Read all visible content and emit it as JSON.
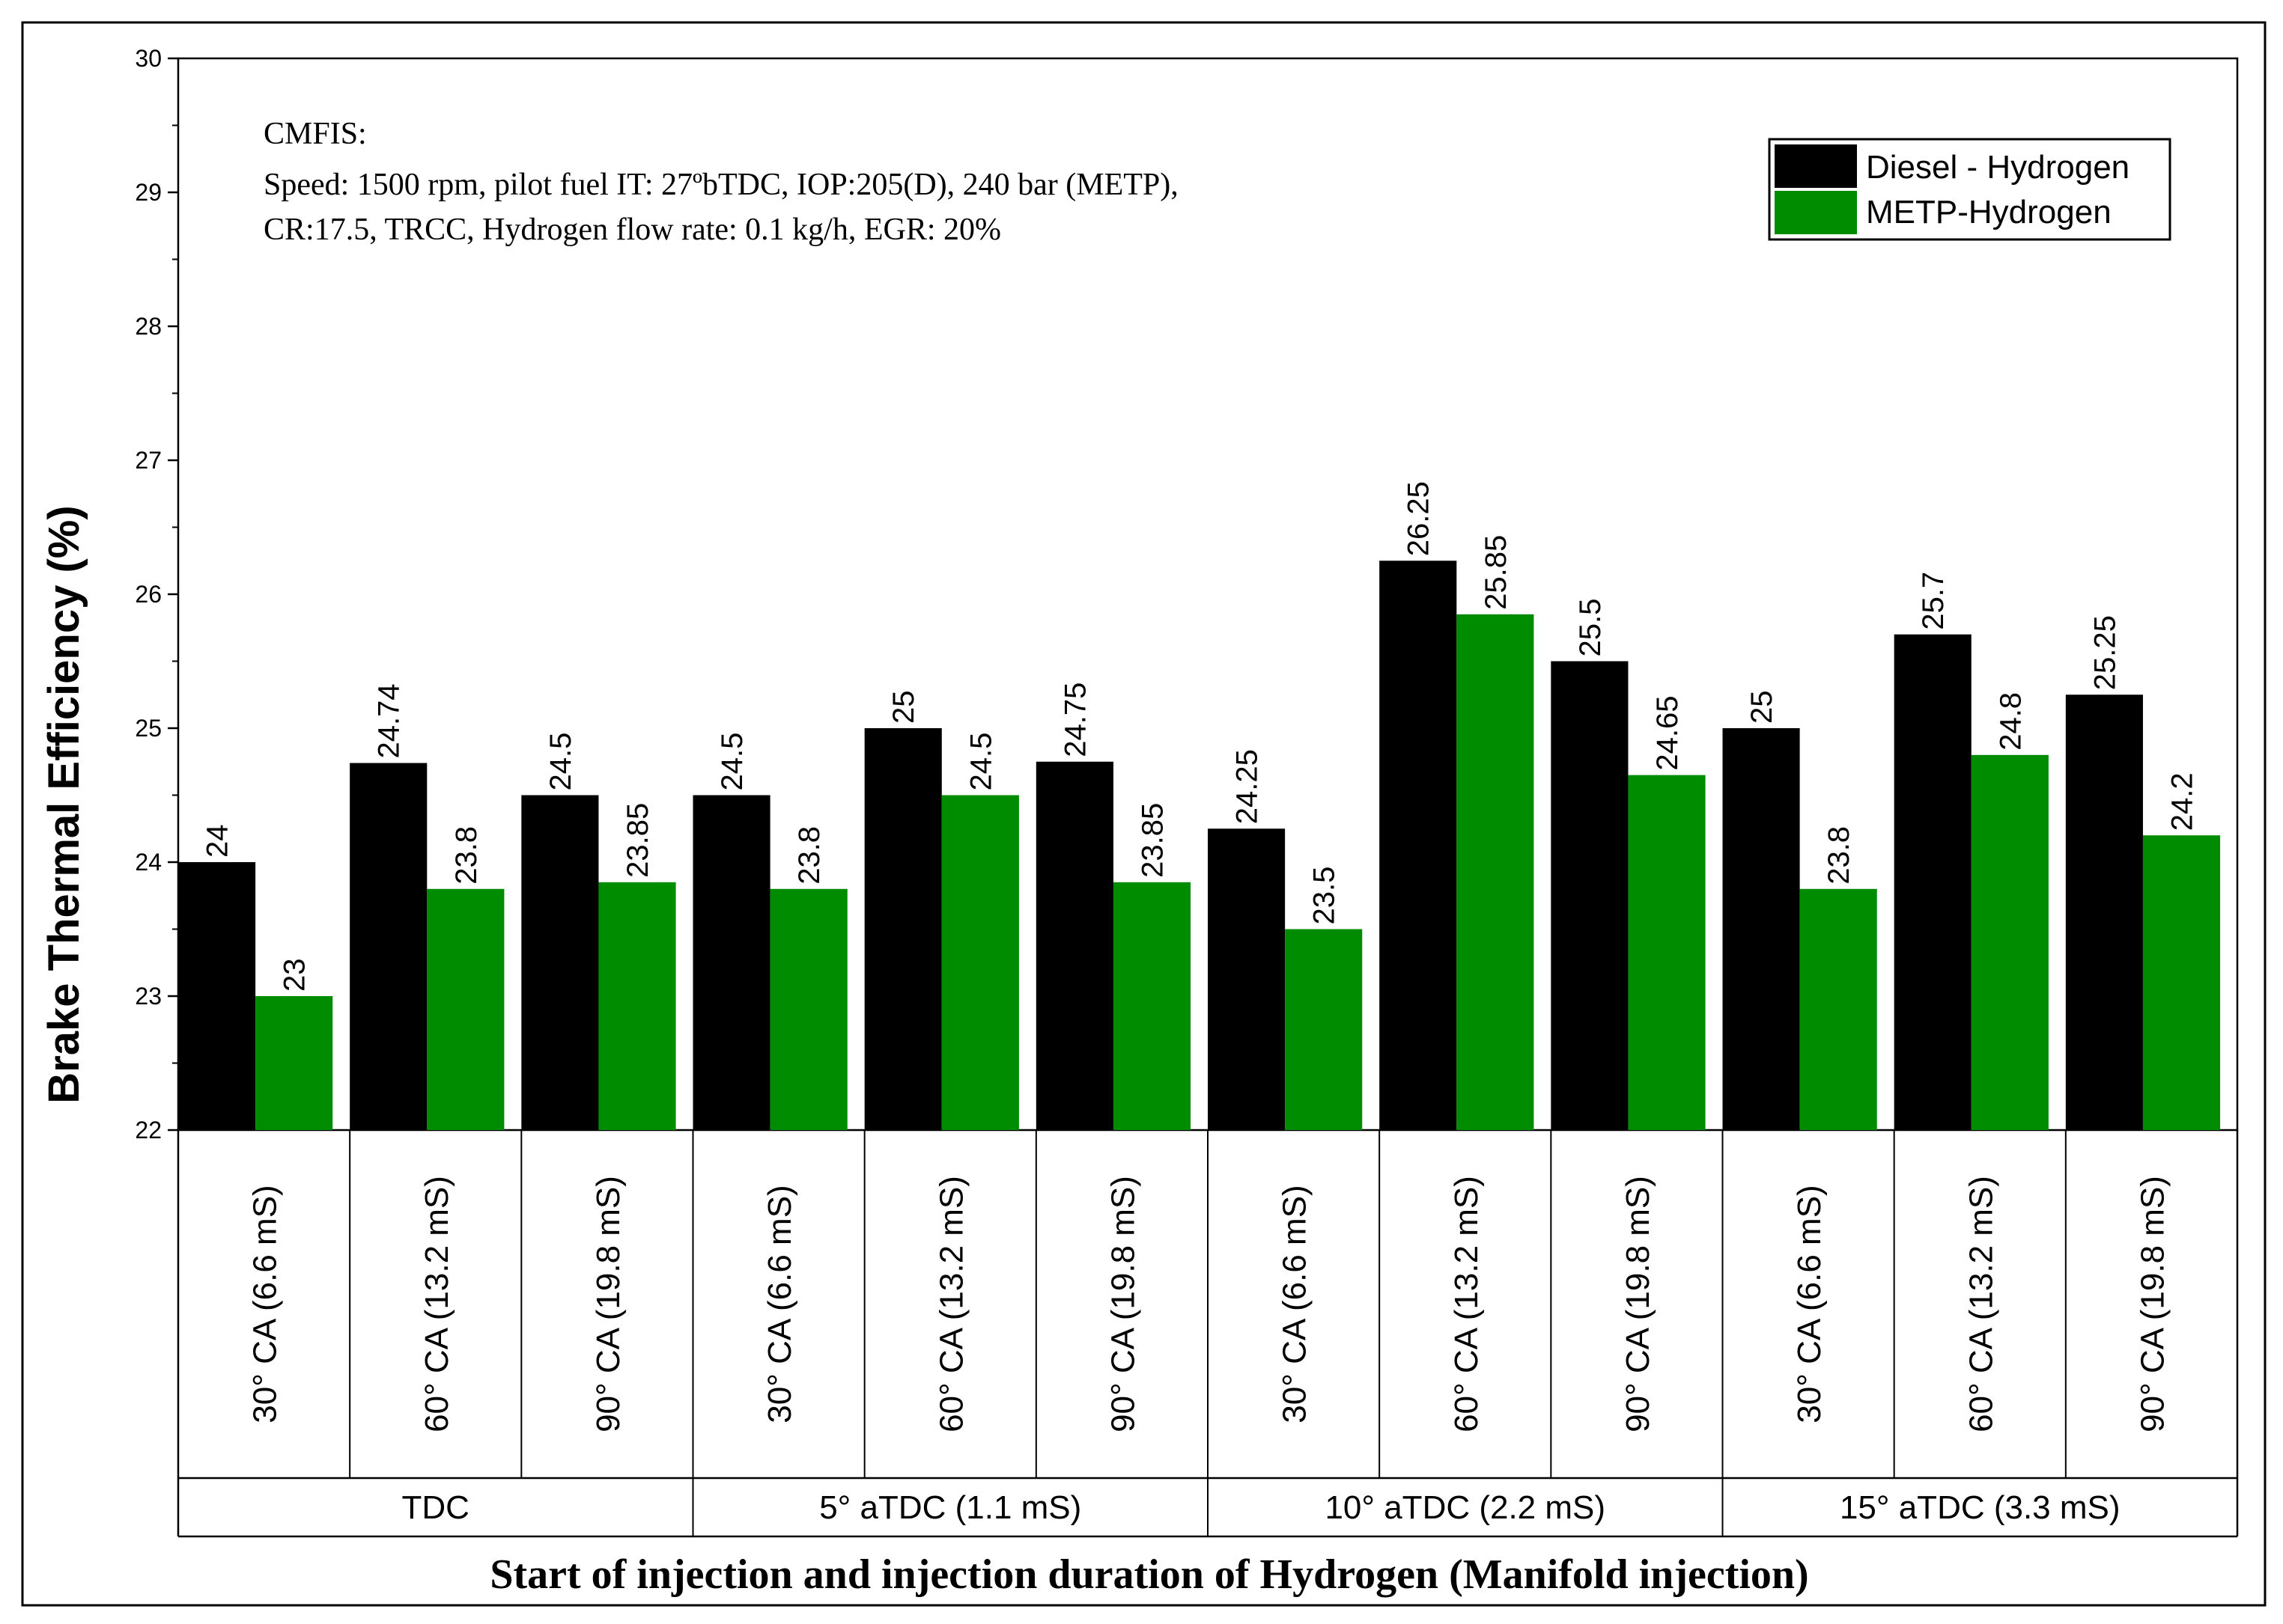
{
  "chart_data": {
    "type": "bar",
    "title": "",
    "ylabel": "Brake Thermal Efficiency (%)",
    "xlabel": "Start of injection and injection duration of Hydrogen (Manifold injection)",
    "ylim": [
      22,
      30
    ],
    "yticks": [
      22,
      23,
      24,
      25,
      26,
      27,
      28,
      29,
      30
    ],
    "yticks_labels": [
      "22",
      "23",
      "24",
      "25",
      "26",
      "27",
      "28",
      "29",
      "30"
    ],
    "legend_position": "top-right",
    "groups": [
      {
        "label": "TDC",
        "categories": [
          "30° CA (6.6 mS)",
          "60° CA (13.2 mS)",
          "90° CA (19.8 mS)"
        ]
      },
      {
        "label": "5° aTDC (1.1 mS)",
        "categories": [
          "30° CA (6.6 mS)",
          "60° CA (13.2 mS)",
          "90° CA (19.8 mS)"
        ]
      },
      {
        "label": "10° aTDC (2.2 mS)",
        "categories": [
          "30° CA (6.6 mS)",
          "60° CA (13.2 mS)",
          "90° CA (19.8 mS)"
        ]
      },
      {
        "label": "15° aTDC (3.3 mS)",
        "categories": [
          "30° CA (6.6 mS)",
          "60° CA (13.2 mS)",
          "90° CA (19.8 mS)"
        ]
      }
    ],
    "series": [
      {
        "name": "Diesel - Hydrogen",
        "color": "#000000",
        "values": [
          24,
          24.74,
          24.5,
          24.5,
          25,
          24.75,
          24.25,
          26.25,
          25.5,
          25,
          25.7,
          25.25
        ],
        "labels": [
          "24",
          "24.74",
          "24.5",
          "24.5",
          "25",
          "24.75",
          "24.25",
          "26.25",
          "25.5",
          "25",
          "25.7",
          "25.25"
        ]
      },
      {
        "name": "METP-Hydrogen",
        "color": "#008c00",
        "values": [
          23,
          23.8,
          23.85,
          23.8,
          24.5,
          23.85,
          23.5,
          25.85,
          24.65,
          23.8,
          24.8,
          24.2
        ],
        "labels": [
          "23",
          "23.8",
          "23.85",
          "23.8",
          "24.5",
          "23.85",
          "23.5",
          "25.85",
          "24.65",
          "23.8",
          "24.8",
          "24.2"
        ]
      }
    ],
    "annotations": [
      "CMFIS:",
      "Speed: 1500 rpm, pilot fuel IT: 27ºbTDC, IOP:205(D), 240 bar (METP),",
      "CR:17.5, TRCC, Hydrogen flow rate: 0.1 kg/h, EGR: 20%"
    ]
  }
}
